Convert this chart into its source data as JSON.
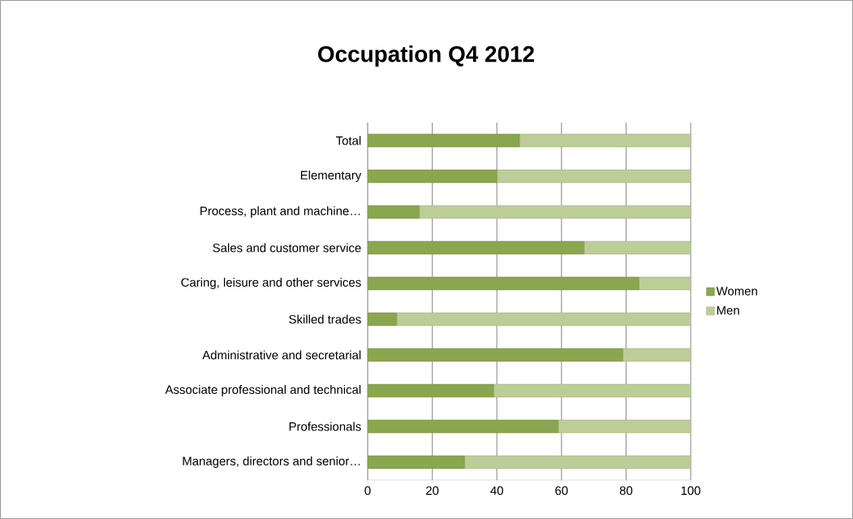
{
  "chart_data": {
    "type": "bar",
    "title": "Occupation Q4 2012",
    "orientation": "horizontal",
    "stacked": true,
    "categories": [
      "Total",
      "Elementary",
      "Process, plant and machine…",
      "Sales and customer service",
      "Caring, leisure and other services",
      "Skilled trades",
      "Administrative and secretarial",
      "Associate professional and technical",
      "Professionals",
      "Managers, directors and senior…"
    ],
    "series": [
      {
        "name": "Women",
        "color": "#8aa64e",
        "values": [
          47,
          40,
          16,
          67,
          84,
          9,
          79,
          39,
          59,
          30
        ]
      },
      {
        "name": "Men",
        "color": "#bccd97",
        "values": [
          53,
          60,
          84,
          33,
          16,
          91,
          21,
          61,
          41,
          70
        ]
      }
    ],
    "xlim": [
      0,
      100
    ],
    "xticks": [
      0,
      20,
      40,
      60,
      80,
      100
    ],
    "grid": "x",
    "legend": "right"
  }
}
